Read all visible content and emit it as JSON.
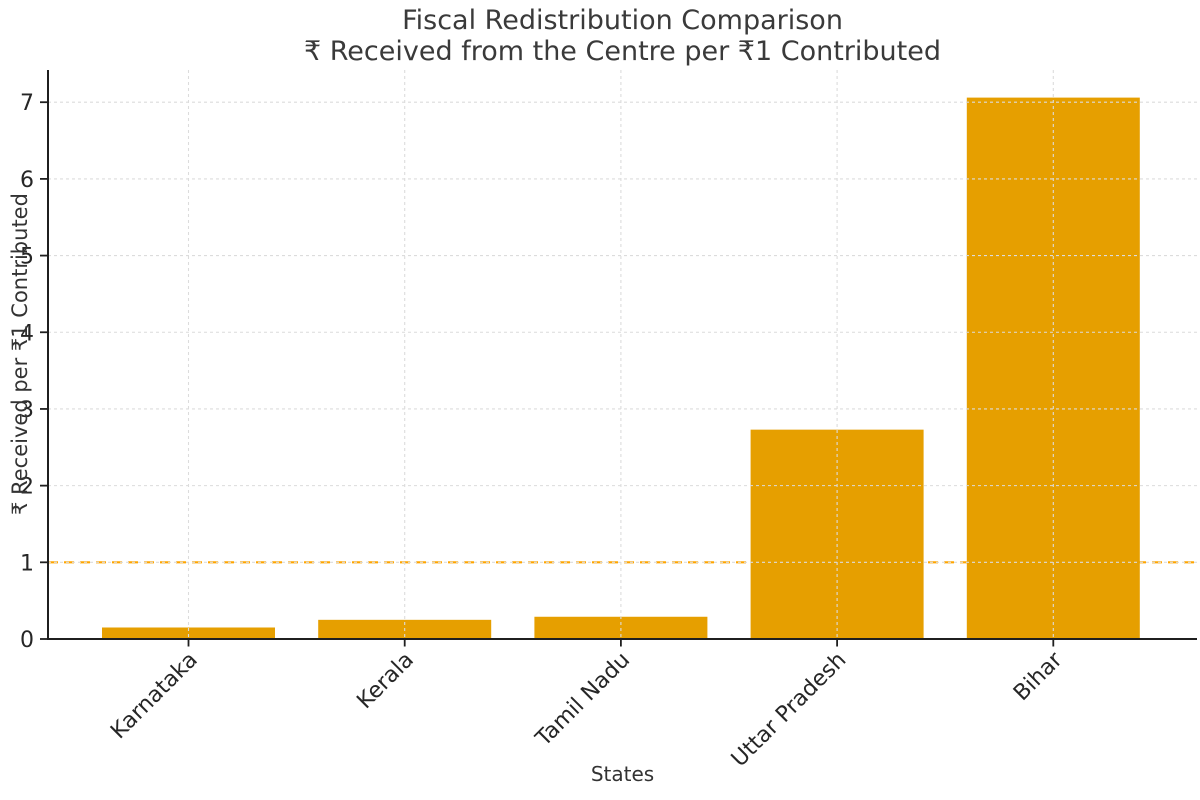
{
  "chart_data": {
    "type": "bar",
    "title": "Fiscal Redistribution Comparison",
    "subtitle": "₹ Received from the Centre per ₹1 Contributed",
    "xlabel": "States",
    "ylabel": "₹ Received per ₹1 Contributed",
    "categories": [
      "Karnataka",
      "Kerala",
      "Tamil Nadu",
      "Uttar Pradesh",
      "Bihar"
    ],
    "values": [
      0.15,
      0.25,
      0.29,
      2.73,
      7.06
    ],
    "y_ticks": [
      0,
      1,
      2,
      3,
      4,
      5,
      6,
      7
    ],
    "ylim": [
      0,
      7.42
    ],
    "reference_line": {
      "y": 1,
      "style": "dashed",
      "color": "#FFA500"
    },
    "bar_color": "#E69F00",
    "grid": {
      "visible": true,
      "style": "dashed",
      "color": "#DCDCDC",
      "above_bars": true
    },
    "legend": "none",
    "x_tick_rotation_deg": 45
  },
  "colors": {
    "background": "#FFFFFF",
    "bar": "#E69F00",
    "reference_line": "#FFA500",
    "grid": "#DCDCDC",
    "axis": "#1F1F1F",
    "text": "#333333"
  }
}
